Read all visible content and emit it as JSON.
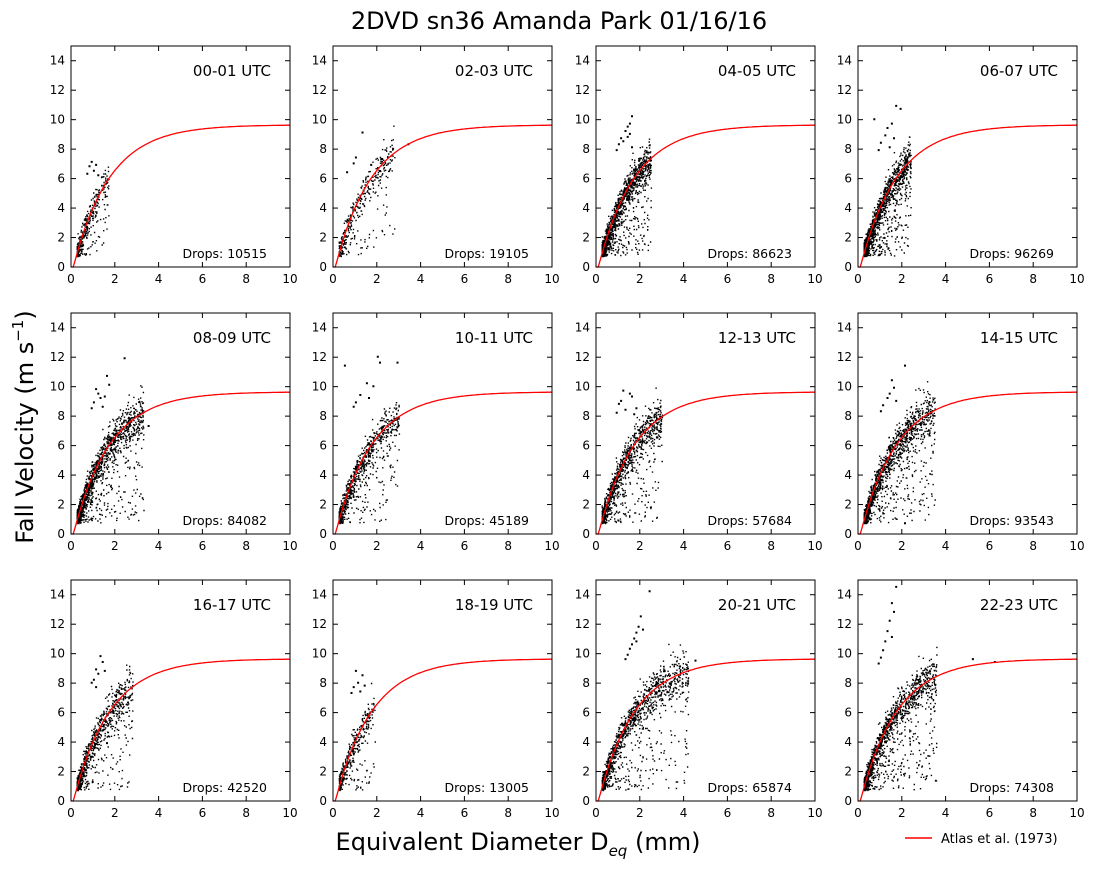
{
  "figure": {
    "title": "2DVD sn36 Amanda Park 01/16/16",
    "ylabel_main": "Fall Velocity (m s",
    "ylabel_sup": "−1",
    "ylabel_close": ")",
    "xlabel_main": "Equivalent Diameter D",
    "xlabel_sub": "eq",
    "xlabel_close": " (mm)",
    "legend_label": "Atlas et al. (1973)",
    "colors": {
      "curve": "#ff0000",
      "points": "#000000",
      "axes": "#000000"
    }
  },
  "chart_data": {
    "type": "scatter",
    "layout": "3x4 grid of panels",
    "xlim": [
      0,
      10
    ],
    "ylim": [
      0,
      15
    ],
    "xticks": [
      0,
      2,
      4,
      6,
      8,
      10
    ],
    "yticks": [
      0,
      2,
      4,
      6,
      8,
      10,
      12,
      14
    ],
    "reference_curve": {
      "name": "Atlas et al. (1973)",
      "formula": "v = 9.65 - 10.3*exp(-0.6*D)",
      "color": "#ff0000",
      "points": [
        [
          0.0,
          0.0
        ],
        [
          0.5,
          2.0
        ],
        [
          1.0,
          4.0
        ],
        [
          1.5,
          5.4
        ],
        [
          2.0,
          6.5
        ],
        [
          3.0,
          8.0
        ],
        [
          4.0,
          8.7
        ],
        [
          5.0,
          9.2
        ],
        [
          6.0,
          9.4
        ],
        [
          8.0,
          9.6
        ],
        [
          10.0,
          9.65
        ]
      ]
    },
    "panels": [
      {
        "label": "00-01 UTC",
        "drops_text": "Drops: 10515",
        "drops": 10515,
        "dmax": 1.7,
        "outliers": [
          [
            0.9,
            7.2
          ],
          [
            0.8,
            6.9
          ],
          [
            1.0,
            6.6
          ],
          [
            1.2,
            6.3
          ],
          [
            0.7,
            6.4
          ],
          [
            1.1,
            7.0
          ]
        ]
      },
      {
        "label": "02-03 UTC",
        "drops_text": "Drops: 19105",
        "drops": 19105,
        "dmax": 2.8,
        "outliers": [
          [
            1.3,
            9.2
          ],
          [
            0.9,
            7.1
          ],
          [
            1.0,
            7.5
          ],
          [
            2.2,
            7.4
          ],
          [
            3.4,
            8.4
          ],
          [
            2.7,
            8.1
          ],
          [
            1.7,
            7.0
          ],
          [
            0.6,
            6.5
          ]
        ]
      },
      {
        "label": "04-05 UTC",
        "drops_text": "Drops: 86623",
        "drops": 86623,
        "dmax": 2.5,
        "outliers": [
          [
            1.6,
            10.3
          ],
          [
            1.5,
            9.8
          ],
          [
            1.4,
            9.6
          ],
          [
            1.3,
            9.3
          ],
          [
            1.5,
            9.1
          ],
          [
            1.1,
            8.8
          ],
          [
            1.2,
            8.6
          ],
          [
            1.0,
            8.4
          ],
          [
            1.6,
            8.2
          ],
          [
            0.9,
            8.0
          ],
          [
            1.4,
            8.9
          ]
        ]
      },
      {
        "label": "06-07 UTC",
        "drops_text": "Drops: 96269",
        "drops": 96269,
        "dmax": 2.4,
        "outliers": [
          [
            1.7,
            11.0
          ],
          [
            1.9,
            10.8
          ],
          [
            0.7,
            10.1
          ],
          [
            1.5,
            9.8
          ],
          [
            1.3,
            9.5
          ],
          [
            1.2,
            9.0
          ],
          [
            1.6,
            8.8
          ],
          [
            1.0,
            8.5
          ],
          [
            1.4,
            8.2
          ],
          [
            0.9,
            8.0
          ]
        ]
      },
      {
        "label": "08-09 UTC",
        "drops_text": "Drops: 84082",
        "drops": 84082,
        "dmax": 3.3,
        "outliers": [
          [
            2.4,
            12.0
          ],
          [
            1.6,
            10.8
          ],
          [
            1.1,
            9.9
          ],
          [
            1.2,
            9.6
          ],
          [
            1.3,
            9.3
          ],
          [
            3.5,
            7.4
          ],
          [
            1.0,
            9.0
          ],
          [
            1.5,
            9.4
          ],
          [
            0.9,
            8.6
          ],
          [
            1.4,
            8.7
          ],
          [
            1.7,
            10.2
          ]
        ]
      },
      {
        "label": "10-11 UTC",
        "drops_text": "Drops: 45189",
        "drops": 45189,
        "dmax": 3.0,
        "outliers": [
          [
            0.5,
            11.5
          ],
          [
            2.0,
            12.1
          ],
          [
            2.1,
            11.7
          ],
          [
            2.9,
            11.7
          ],
          [
            1.8,
            10.1
          ],
          [
            1.5,
            10.3
          ],
          [
            1.2,
            9.5
          ],
          [
            1.0,
            9.0
          ],
          [
            1.6,
            9.3
          ],
          [
            0.9,
            8.7
          ]
        ]
      },
      {
        "label": "12-13 UTC",
        "drops_text": "Drops: 57684",
        "drops": 57684,
        "dmax": 3.0,
        "outliers": [
          [
            1.2,
            9.8
          ],
          [
            1.5,
            9.6
          ],
          [
            1.6,
            9.4
          ],
          [
            1.0,
            8.9
          ],
          [
            1.7,
            8.2
          ],
          [
            1.3,
            8.5
          ],
          [
            0.9,
            8.3
          ],
          [
            1.8,
            8.6
          ],
          [
            1.1,
            9.1
          ]
        ]
      },
      {
        "label": "14-15 UTC",
        "drops_text": "Drops: 93543",
        "drops": 93543,
        "dmax": 3.5,
        "outliers": [
          [
            2.1,
            11.5
          ],
          [
            1.5,
            10.5
          ],
          [
            1.6,
            10.0
          ],
          [
            1.4,
            9.6
          ],
          [
            1.3,
            9.3
          ],
          [
            1.7,
            9.1
          ],
          [
            1.1,
            8.8
          ],
          [
            2.1,
            0.8
          ],
          [
            1.9,
            5.5
          ],
          [
            1.0,
            8.4
          ]
        ]
      },
      {
        "label": "16-17 UTC",
        "drops_text": "Drops: 42520",
        "drops": 42520,
        "dmax": 2.8,
        "outliers": [
          [
            1.3,
            9.9
          ],
          [
            1.4,
            9.5
          ],
          [
            1.1,
            9.0
          ],
          [
            1.2,
            8.7
          ],
          [
            1.0,
            8.3
          ],
          [
            1.5,
            8.9
          ],
          [
            0.9,
            8.1
          ],
          [
            1.6,
            4.0
          ],
          [
            2.0,
            7.2
          ],
          [
            1.1,
            7.8
          ]
        ]
      },
      {
        "label": "18-19 UTC",
        "drops_text": "Drops: 13005",
        "drops": 13005,
        "dmax": 1.9,
        "outliers": [
          [
            1.0,
            8.9
          ],
          [
            1.3,
            8.6
          ],
          [
            1.1,
            8.1
          ],
          [
            0.9,
            7.8
          ],
          [
            1.2,
            7.5
          ],
          [
            1.4,
            7.9
          ],
          [
            0.8,
            7.4
          ]
        ]
      },
      {
        "label": "20-21 UTC",
        "drops_text": "Drops: 65874",
        "drops": 65874,
        "dmax": 4.2,
        "outliers": [
          [
            2.4,
            14.3
          ],
          [
            2.0,
            12.6
          ],
          [
            1.9,
            11.9
          ],
          [
            1.8,
            11.5
          ],
          [
            1.7,
            11.1
          ],
          [
            1.6,
            10.7
          ],
          [
            1.5,
            10.4
          ],
          [
            1.8,
            10.9
          ],
          [
            1.4,
            10.0
          ],
          [
            4.5,
            9.6
          ],
          [
            2.1,
            11.7
          ],
          [
            1.3,
            9.7
          ]
        ]
      },
      {
        "label": "22-23 UTC",
        "drops_text": "Drops: 74308",
        "drops": 74308,
        "dmax": 3.6,
        "outliers": [
          [
            1.7,
            14.6
          ],
          [
            1.5,
            13.5
          ],
          [
            1.6,
            12.9
          ],
          [
            1.4,
            12.3
          ],
          [
            1.3,
            11.6
          ],
          [
            1.2,
            10.9
          ],
          [
            1.1,
            10.3
          ],
          [
            5.2,
            9.7
          ],
          [
            6.2,
            9.5
          ],
          [
            1.0,
            9.8
          ],
          [
            1.5,
            11.2
          ],
          [
            0.9,
            9.4
          ]
        ]
      }
    ],
    "legend": {
      "entries": [
        "Atlas et al. (1973)"
      ],
      "placement": "bottom-right, below grid"
    }
  }
}
